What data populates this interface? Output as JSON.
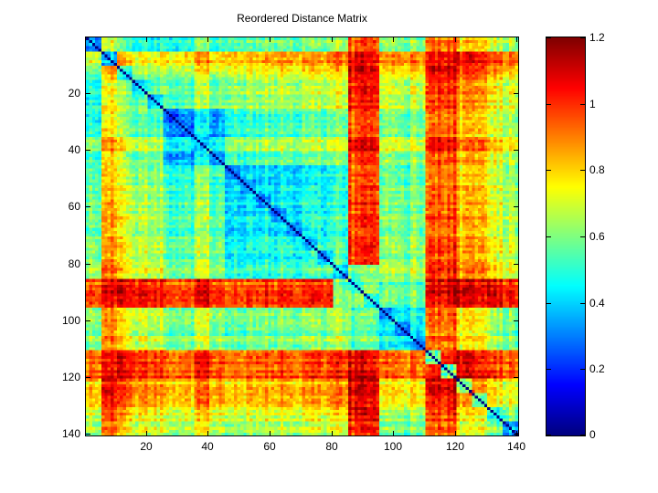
{
  "figure": {
    "background": "#ffffff",
    "axis_color": "#000000",
    "diagonal_color": "#00008f"
  },
  "chart_data": {
    "type": "heatmap",
    "title": "Reordered Distance Matrix",
    "matrix_size": 140,
    "value_range": [
      0,
      1.2
    ],
    "colormap": "jet",
    "diagonal_value": 0,
    "grid": false,
    "x_ticks": [
      20,
      40,
      60,
      80,
      100,
      120,
      140
    ],
    "x_tick_labels": [
      "20",
      "40",
      "60",
      "80",
      "100",
      "120",
      "140"
    ],
    "y_ticks": [
      20,
      40,
      60,
      80,
      100,
      120,
      140
    ],
    "y_tick_labels": [
      "20",
      "40",
      "60",
      "80",
      "100",
      "120",
      "140"
    ],
    "colorbar": {
      "position": "right",
      "ticks": [
        0,
        0.2,
        0.4,
        0.6,
        0.8,
        1,
        1.2
      ],
      "tick_labels": [
        "0",
        "0.2",
        "0.4",
        "0.6",
        "0.8",
        "1",
        "1.2"
      ]
    },
    "downsample_block": 5,
    "coarse_values_note": "140x140 symmetric distance matrix downsampled to 28x28 block means (values 0-1.2); diagonal cells are 0",
    "coarse_values": [
      [
        0.34,
        0.72,
        0.57,
        0.47,
        0.47,
        0.5,
        0.5,
        0.6,
        0.5,
        0.55,
        0.55,
        0.6,
        0.6,
        0.55,
        0.6,
        0.6,
        0.65,
        0.95,
        1.0,
        0.63,
        0.58,
        0.63,
        0.95,
        0.95,
        0.8,
        0.85,
        0.7,
        0.65
      ],
      [
        0.72,
        0.42,
        0.87,
        0.77,
        0.77,
        0.8,
        0.8,
        0.9,
        0.8,
        0.85,
        0.85,
        0.9,
        0.9,
        0.85,
        0.9,
        0.9,
        0.95,
        1.08,
        1.08,
        0.93,
        0.88,
        0.93,
        1.08,
        1.08,
        1.08,
        1.08,
        1.0,
        0.95
      ],
      [
        0.57,
        0.87,
        0.49,
        0.62,
        0.62,
        0.65,
        0.65,
        0.75,
        0.65,
        0.7,
        0.7,
        0.75,
        0.75,
        0.7,
        0.75,
        0.75,
        0.8,
        1.08,
        1.08,
        0.78,
        0.73,
        0.78,
        1.08,
        1.08,
        0.95,
        1.0,
        0.85,
        0.8
      ],
      [
        0.47,
        0.77,
        0.62,
        0.39,
        0.52,
        0.55,
        0.55,
        0.65,
        0.55,
        0.6,
        0.6,
        0.65,
        0.65,
        0.6,
        0.65,
        0.65,
        0.7,
        1.0,
        1.05,
        0.68,
        0.63,
        0.68,
        1.0,
        1.0,
        0.85,
        0.9,
        0.75,
        0.7
      ],
      [
        0.47,
        0.77,
        0.62,
        0.52,
        0.39,
        0.55,
        0.55,
        0.65,
        0.55,
        0.6,
        0.6,
        0.65,
        0.65,
        0.6,
        0.65,
        0.65,
        0.7,
        1.0,
        1.05,
        0.68,
        0.63,
        0.68,
        1.0,
        1.0,
        0.85,
        0.9,
        0.75,
        0.7
      ],
      [
        0.5,
        0.8,
        0.65,
        0.55,
        0.55,
        0.28,
        0.34,
        0.44,
        0.34,
        0.5,
        0.5,
        0.55,
        0.55,
        0.5,
        0.55,
        0.55,
        0.6,
        0.95,
        1.0,
        0.6,
        0.55,
        0.6,
        0.95,
        0.95,
        0.8,
        0.85,
        0.7,
        0.65
      ],
      [
        0.5,
        0.8,
        0.65,
        0.55,
        0.55,
        0.34,
        0.28,
        0.44,
        0.34,
        0.5,
        0.5,
        0.55,
        0.55,
        0.5,
        0.55,
        0.55,
        0.6,
        0.95,
        1.0,
        0.6,
        0.55,
        0.6,
        0.95,
        0.95,
        0.8,
        0.85,
        0.7,
        0.65
      ],
      [
        0.6,
        0.9,
        0.75,
        0.65,
        0.65,
        0.44,
        0.44,
        0.36,
        0.44,
        0.6,
        0.6,
        0.65,
        0.65,
        0.6,
        0.65,
        0.65,
        0.7,
        1.05,
        1.08,
        0.7,
        0.65,
        0.7,
        1.05,
        1.05,
        0.9,
        0.95,
        0.8,
        0.75
      ],
      [
        0.5,
        0.8,
        0.65,
        0.55,
        0.55,
        0.34,
        0.34,
        0.44,
        0.28,
        0.5,
        0.5,
        0.55,
        0.55,
        0.5,
        0.55,
        0.55,
        0.6,
        0.95,
        1.0,
        0.6,
        0.55,
        0.6,
        0.95,
        0.95,
        0.8,
        0.85,
        0.7,
        0.65
      ],
      [
        0.55,
        0.85,
        0.7,
        0.6,
        0.6,
        0.5,
        0.5,
        0.6,
        0.5,
        0.3,
        0.38,
        0.43,
        0.43,
        0.38,
        0.43,
        0.43,
        0.48,
        0.93,
        0.98,
        0.57,
        0.52,
        0.57,
        0.93,
        0.93,
        0.78,
        0.83,
        0.68,
        0.63
      ],
      [
        0.55,
        0.85,
        0.7,
        0.6,
        0.6,
        0.5,
        0.5,
        0.6,
        0.5,
        0.38,
        0.3,
        0.43,
        0.43,
        0.38,
        0.43,
        0.43,
        0.48,
        0.93,
        0.98,
        0.57,
        0.52,
        0.57,
        0.93,
        0.93,
        0.78,
        0.83,
        0.68,
        0.63
      ],
      [
        0.6,
        0.9,
        0.75,
        0.65,
        0.65,
        0.55,
        0.55,
        0.65,
        0.55,
        0.43,
        0.43,
        0.35,
        0.48,
        0.43,
        0.48,
        0.48,
        0.53,
        0.98,
        1.03,
        0.62,
        0.57,
        0.62,
        0.98,
        0.98,
        0.83,
        0.88,
        0.73,
        0.68
      ],
      [
        0.6,
        0.9,
        0.75,
        0.65,
        0.65,
        0.55,
        0.55,
        0.65,
        0.55,
        0.43,
        0.43,
        0.48,
        0.35,
        0.43,
        0.48,
        0.48,
        0.53,
        0.98,
        1.03,
        0.62,
        0.57,
        0.62,
        0.98,
        0.98,
        0.83,
        0.88,
        0.73,
        0.68
      ],
      [
        0.55,
        0.85,
        0.7,
        0.6,
        0.6,
        0.5,
        0.5,
        0.6,
        0.5,
        0.38,
        0.38,
        0.43,
        0.43,
        0.28,
        0.43,
        0.43,
        0.48,
        0.93,
        0.98,
        0.57,
        0.52,
        0.57,
        0.93,
        0.93,
        0.78,
        0.83,
        0.68,
        0.63
      ],
      [
        0.6,
        0.9,
        0.75,
        0.65,
        0.65,
        0.55,
        0.55,
        0.65,
        0.55,
        0.43,
        0.43,
        0.48,
        0.48,
        0.43,
        0.35,
        0.48,
        0.53,
        0.98,
        1.03,
        0.62,
        0.57,
        0.62,
        0.98,
        0.98,
        0.83,
        0.88,
        0.73,
        0.68
      ],
      [
        0.6,
        0.9,
        0.75,
        0.65,
        0.65,
        0.55,
        0.55,
        0.65,
        0.55,
        0.43,
        0.43,
        0.48,
        0.48,
        0.43,
        0.48,
        0.35,
        0.53,
        0.98,
        1.03,
        0.62,
        0.57,
        0.62,
        0.98,
        0.98,
        0.83,
        0.88,
        0.73,
        0.68
      ],
      [
        0.65,
        0.95,
        0.8,
        0.7,
        0.7,
        0.6,
        0.6,
        0.7,
        0.6,
        0.48,
        0.48,
        0.53,
        0.53,
        0.48,
        0.53,
        0.53,
        0.4,
        0.58,
        0.62,
        0.67,
        0.62,
        0.67,
        1.03,
        1.03,
        0.88,
        0.93,
        0.78,
        0.73
      ],
      [
        0.95,
        1.08,
        1.08,
        1.0,
        1.0,
        0.95,
        0.95,
        1.05,
        0.95,
        0.93,
        0.93,
        0.98,
        0.98,
        0.93,
        0.98,
        0.98,
        0.58,
        0.5,
        0.62,
        0.55,
        0.5,
        0.55,
        1.08,
        1.08,
        1.08,
        1.08,
        1.05,
        1.0
      ],
      [
        1.0,
        1.08,
        1.08,
        1.05,
        1.05,
        1.0,
        1.0,
        1.08,
        1.0,
        0.98,
        0.98,
        1.03,
        1.03,
        0.98,
        1.03,
        1.03,
        0.62,
        0.62,
        0.5,
        0.6,
        0.55,
        0.6,
        1.08,
        1.08,
        1.08,
        1.08,
        1.08,
        1.05
      ],
      [
        0.63,
        0.93,
        0.78,
        0.68,
        0.68,
        0.6,
        0.6,
        0.7,
        0.6,
        0.57,
        0.57,
        0.62,
        0.62,
        0.57,
        0.62,
        0.62,
        0.67,
        0.55,
        0.6,
        0.34,
        0.42,
        0.47,
        0.95,
        0.95,
        0.75,
        0.8,
        0.65,
        0.6
      ],
      [
        0.58,
        0.88,
        0.73,
        0.63,
        0.63,
        0.55,
        0.55,
        0.65,
        0.55,
        0.52,
        0.52,
        0.57,
        0.57,
        0.52,
        0.57,
        0.57,
        0.62,
        0.5,
        0.55,
        0.42,
        0.29,
        0.42,
        0.9,
        0.9,
        0.7,
        0.75,
        0.6,
        0.55
      ],
      [
        0.63,
        0.93,
        0.78,
        0.68,
        0.68,
        0.6,
        0.6,
        0.7,
        0.6,
        0.57,
        0.57,
        0.62,
        0.62,
        0.57,
        0.62,
        0.62,
        0.67,
        0.55,
        0.6,
        0.47,
        0.42,
        0.34,
        0.95,
        0.95,
        0.75,
        0.8,
        0.65,
        0.6
      ],
      [
        0.95,
        1.08,
        1.08,
        1.0,
        1.0,
        0.95,
        0.95,
        1.05,
        0.95,
        0.93,
        0.93,
        0.98,
        0.98,
        0.93,
        0.98,
        0.98,
        1.03,
        1.08,
        1.08,
        0.95,
        0.9,
        0.95,
        0.6,
        1.05,
        1.08,
        1.08,
        1.0,
        0.95
      ],
      [
        0.95,
        1.08,
        1.08,
        1.0,
        1.0,
        0.95,
        0.95,
        1.05,
        0.95,
        0.93,
        0.93,
        0.98,
        0.98,
        0.93,
        0.98,
        0.98,
        1.03,
        1.08,
        1.08,
        0.95,
        0.9,
        0.95,
        1.05,
        0.6,
        1.08,
        1.08,
        1.0,
        0.95
      ],
      [
        0.8,
        1.08,
        0.95,
        0.85,
        0.85,
        0.8,
        0.8,
        0.9,
        0.8,
        0.78,
        0.78,
        0.83,
        0.83,
        0.78,
        0.83,
        0.83,
        0.88,
        1.08,
        1.08,
        0.75,
        0.7,
        0.75,
        1.08,
        1.08,
        0.57,
        0.9,
        0.75,
        0.7
      ],
      [
        0.85,
        1.08,
        1.0,
        0.9,
        0.9,
        0.85,
        0.85,
        0.95,
        0.85,
        0.83,
        0.83,
        0.88,
        0.88,
        0.83,
        0.88,
        0.88,
        0.93,
        1.08,
        1.08,
        0.8,
        0.75,
        0.8,
        1.08,
        1.08,
        0.9,
        0.62,
        0.8,
        0.75
      ],
      [
        0.7,
        1.0,
        0.85,
        0.75,
        0.75,
        0.7,
        0.7,
        0.8,
        0.7,
        0.68,
        0.68,
        0.73,
        0.73,
        0.68,
        0.73,
        0.73,
        0.78,
        1.05,
        1.08,
        0.65,
        0.6,
        0.65,
        1.0,
        1.0,
        0.75,
        0.8,
        0.47,
        0.6
      ],
      [
        0.65,
        0.95,
        0.8,
        0.7,
        0.7,
        0.65,
        0.65,
        0.75,
        0.65,
        0.63,
        0.63,
        0.68,
        0.68,
        0.63,
        0.68,
        0.68,
        0.73,
        1.0,
        1.05,
        0.6,
        0.55,
        0.6,
        0.95,
        0.95,
        0.7,
        0.75,
        0.6,
        0.35
      ]
    ]
  }
}
